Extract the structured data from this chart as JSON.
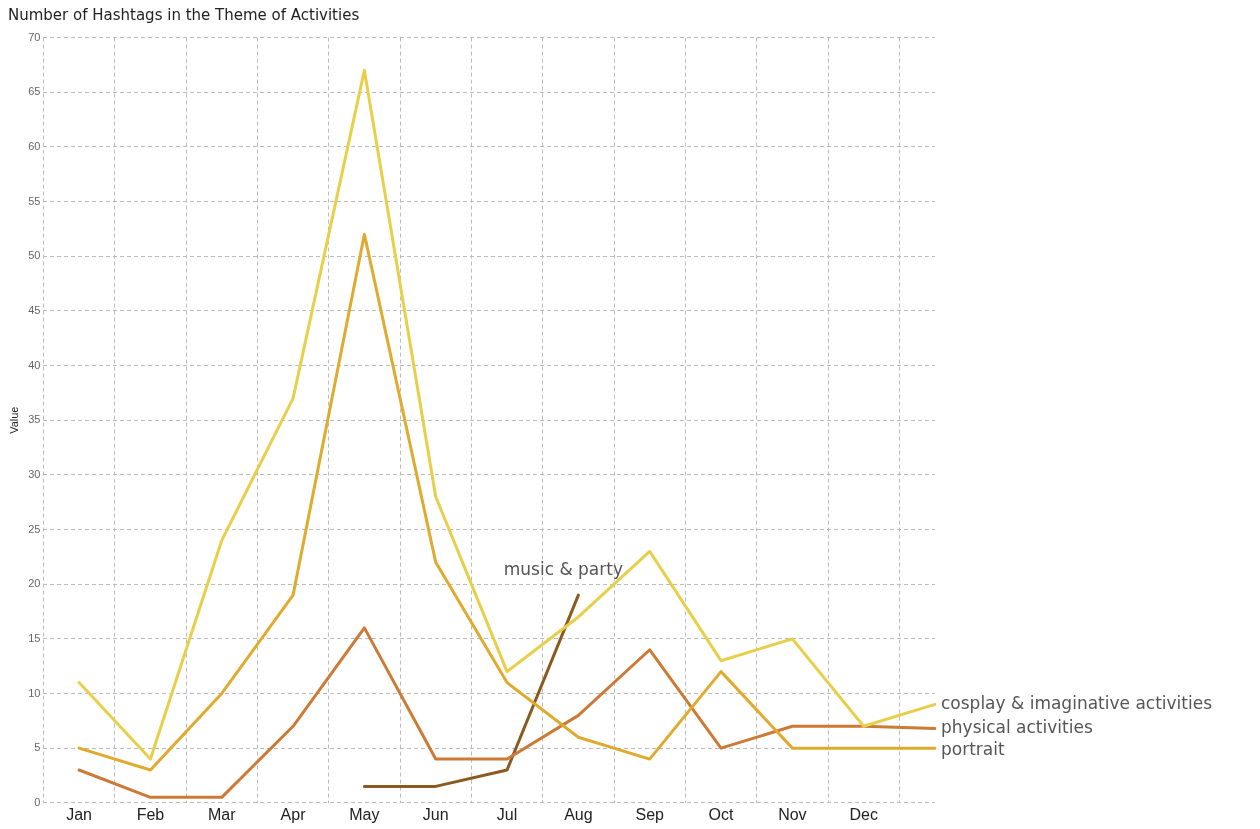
{
  "chart_data": {
    "type": "line",
    "title": "Number of Hashtags in the Theme of Activities",
    "ylabel": "Value",
    "categories": [
      "Jan",
      "Feb",
      "Mar",
      "Apr",
      "May",
      "Jun",
      "Jul",
      "Aug",
      "Sep",
      "Oct",
      "Nov",
      "Dec",
      null
    ],
    "ylim": [
      0,
      70
    ],
    "yticks": [
      0,
      5,
      10,
      15,
      20,
      25,
      30,
      35,
      40,
      45,
      50,
      55,
      60,
      65,
      70
    ],
    "grid": true,
    "legend": false,
    "marker": "none",
    "line_style": "solid",
    "series": [
      {
        "name": "cosplay & imaginative activities",
        "color": "#e8cf4a",
        "values": [
          11,
          4,
          24,
          37,
          67,
          28,
          12,
          17,
          23,
          13,
          15,
          7,
          9
        ]
      },
      {
        "name": "portrait",
        "color": "#e0aa2e",
        "values": [
          5,
          3,
          10,
          19,
          52,
          22,
          11,
          6,
          4,
          12,
          5,
          5,
          5
        ]
      },
      {
        "name": "physical activities",
        "color": "#cc7a35",
        "values": [
          3,
          0.5,
          0.5,
          7,
          16,
          4,
          4,
          8,
          14,
          5,
          7,
          7,
          6.8
        ]
      },
      {
        "name": "music & party",
        "color": "#8b5a1e",
        "values": [
          null,
          null,
          null,
          null,
          1.5,
          1.5,
          3,
          19,
          null,
          null,
          null,
          null,
          null
        ]
      }
    ]
  }
}
